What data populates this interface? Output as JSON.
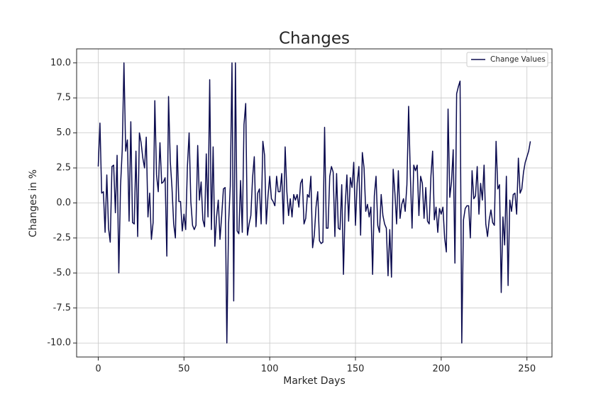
{
  "chart_data": {
    "type": "line",
    "title": "Changes",
    "xlabel": "Market Days",
    "ylabel": "Changes in %",
    "x": [
      0,
      1,
      2,
      3,
      4,
      5,
      6,
      7,
      8,
      9,
      10,
      11,
      12,
      13,
      14,
      15,
      16,
      17,
      18,
      19,
      20,
      21,
      22,
      23,
      24,
      25,
      26,
      27,
      28,
      29,
      30,
      31,
      32,
      33,
      34,
      35,
      36,
      37,
      38,
      39,
      40,
      41,
      42,
      43,
      44,
      45,
      46,
      47,
      48,
      49,
      50,
      51,
      52,
      53,
      54,
      55,
      56,
      57,
      58,
      59,
      60,
      61,
      62,
      63,
      64,
      65,
      66,
      67,
      68,
      69,
      70,
      71,
      72,
      73,
      74,
      75,
      76,
      77,
      78,
      79,
      80,
      81,
      82,
      83,
      84,
      85,
      86,
      87,
      88,
      89,
      90,
      91,
      92,
      93,
      94,
      95,
      96,
      97,
      98,
      99,
      100,
      101,
      102,
      103,
      104,
      105,
      106,
      107,
      108,
      109,
      110,
      111,
      112,
      113,
      114,
      115,
      116,
      117,
      118,
      119,
      120,
      121,
      122,
      123,
      124,
      125,
      126,
      127,
      128,
      129,
      130,
      131,
      132,
      133,
      134,
      135,
      136,
      137,
      138,
      139,
      140,
      141,
      142,
      143,
      144,
      145,
      146,
      147,
      148,
      149,
      150,
      151,
      152,
      153,
      154,
      155,
      156,
      157,
      158,
      159,
      160,
      161,
      162,
      163,
      164,
      165,
      166,
      167,
      168,
      169,
      170,
      171,
      172,
      173,
      174,
      175,
      176,
      177,
      178,
      179,
      180,
      181,
      182,
      183,
      184,
      185,
      186,
      187,
      188,
      189,
      190,
      191,
      192,
      193,
      194,
      195,
      196,
      197,
      198,
      199,
      200,
      201,
      202,
      203,
      204,
      205,
      206,
      207,
      208,
      209,
      210,
      211,
      212,
      213,
      214,
      215,
      216,
      217,
      218,
      219,
      220,
      221,
      222,
      223,
      224,
      225,
      226,
      227,
      228,
      229,
      230,
      231,
      232,
      233,
      234,
      235,
      236,
      237,
      238,
      239,
      240,
      241,
      242,
      243,
      244,
      245,
      246,
      247,
      248,
      249,
      250,
      251,
      252
    ],
    "series": [
      {
        "name": "Change Values",
        "color": "#0b0b4f",
        "values": [
          2.6,
          5.7,
          0.7,
          0.8,
          -2.1,
          2.0,
          -1.8,
          -2.8,
          2.6,
          2.7,
          -0.7,
          3.4,
          -5.0,
          1.2,
          3.8,
          10.0,
          3.7,
          4.5,
          -1.3,
          5.8,
          -1.4,
          -1.5,
          3.7,
          -2.4,
          5.0,
          4.3,
          3.2,
          2.5,
          4.7,
          -1.0,
          0.7,
          -2.6,
          -1.4,
          7.3,
          2.0,
          0.8,
          4.3,
          1.4,
          1.5,
          1.8,
          -3.8,
          7.6,
          3.0,
          1.1,
          -1.5,
          -2.5,
          4.1,
          0.1,
          0.1,
          -2.0,
          -0.8,
          -1.9,
          2.6,
          5.0,
          0.1,
          -1.6,
          -1.9,
          -1.6,
          4.1,
          0.2,
          1.5,
          -1.2,
          -1.7,
          3.5,
          -1.0,
          8.8,
          -1.9,
          4.0,
          -3.1,
          -1.0,
          0.2,
          -2.6,
          -0.9,
          1.0,
          1.1,
          -10.0,
          -1.5,
          1.2,
          10.0,
          -7.0,
          10.0,
          -2.0,
          -2.2,
          1.6,
          -2.1,
          5.6,
          7.1,
          -2.3,
          -1.5,
          -0.9,
          1.8,
          3.3,
          -1.7,
          0.7,
          1.0,
          -1.5,
          4.4,
          3.4,
          -1.5,
          0.5,
          1.9,
          0.3,
          0.1,
          -0.2,
          1.9,
          0.8,
          0.8,
          2.1,
          -1.5,
          4.0,
          0.8,
          -0.9,
          0.3,
          -1.0,
          0.6,
          0.2,
          0.6,
          -0.3,
          1.4,
          1.7,
          -1.5,
          -1.1,
          0.6,
          0.4,
          1.9,
          -3.2,
          -2.3,
          -0.3,
          0.8,
          -2.7,
          -2.9,
          -2.8,
          5.4,
          -1.8,
          -1.8,
          1.9,
          2.6,
          2.2,
          -2.4,
          2.1,
          -1.8,
          -1.9,
          1.3,
          -5.1,
          -0.2,
          2.0,
          -1.3,
          1.8,
          1.1,
          2.9,
          -1.6,
          1.4,
          2.6,
          -2.3,
          3.6,
          2.5,
          -0.6,
          -0.1,
          -1.0,
          -0.3,
          -5.1,
          0.5,
          1.9,
          -1.6,
          -2.1,
          0.6,
          -0.9,
          -1.5,
          -1.8,
          -5.2,
          -1.9,
          -5.3,
          2.4,
          0.7,
          -1.5,
          2.3,
          -1.1,
          -0.1,
          0.3,
          -0.6,
          1.3,
          6.9,
          2.0,
          -1.8,
          2.7,
          2.3,
          2.7,
          -0.9,
          1.9,
          1.4,
          -1.1,
          1.1,
          -1.3,
          -1.5,
          1.9,
          3.7,
          -1.2,
          -0.3,
          -2.1,
          -0.4,
          -0.8,
          -0.3,
          -2.5,
          -3.5,
          6.7,
          0.4,
          1.5,
          3.8,
          -4.3,
          7.8,
          8.3,
          8.7,
          -10.0,
          -1.2,
          -0.4,
          -0.2,
          -0.2,
          -2.5,
          2.3,
          0.3,
          0.5,
          2.6,
          -0.8,
          1.4,
          0.2,
          2.7,
          -1.5,
          -2.4,
          -1.2,
          -0.5,
          -1.4,
          -1.6,
          4.4,
          1.0,
          1.3,
          -6.4,
          -1.0,
          -3.0,
          1.9,
          -5.9,
          0.2,
          -0.6,
          0.6,
          0.7,
          -0.8,
          3.2,
          0.7,
          1.0,
          2.2,
          2.9,
          3.3,
          3.7,
          4.4
        ]
      }
    ],
    "xlim": [
      -12.6,
      264.6
    ],
    "ylim": [
      -11,
      11
    ],
    "xticks": [
      0,
      50,
      100,
      150,
      200,
      250
    ],
    "yticks": [
      {
        "value": -10,
        "label": "-10.0"
      },
      {
        "value": -7.5,
        "label": "-7.5"
      },
      {
        "value": -5,
        "label": "-5.0"
      },
      {
        "value": -2.5,
        "label": "-2.5"
      },
      {
        "value": 0,
        "label": "0.0"
      },
      {
        "value": 2.5,
        "label": "2.5"
      },
      {
        "value": 5,
        "label": "5.0"
      },
      {
        "value": 7.5,
        "label": "7.5"
      },
      {
        "value": 10,
        "label": "10.0"
      }
    ],
    "grid": true,
    "legend": "upper-right"
  }
}
